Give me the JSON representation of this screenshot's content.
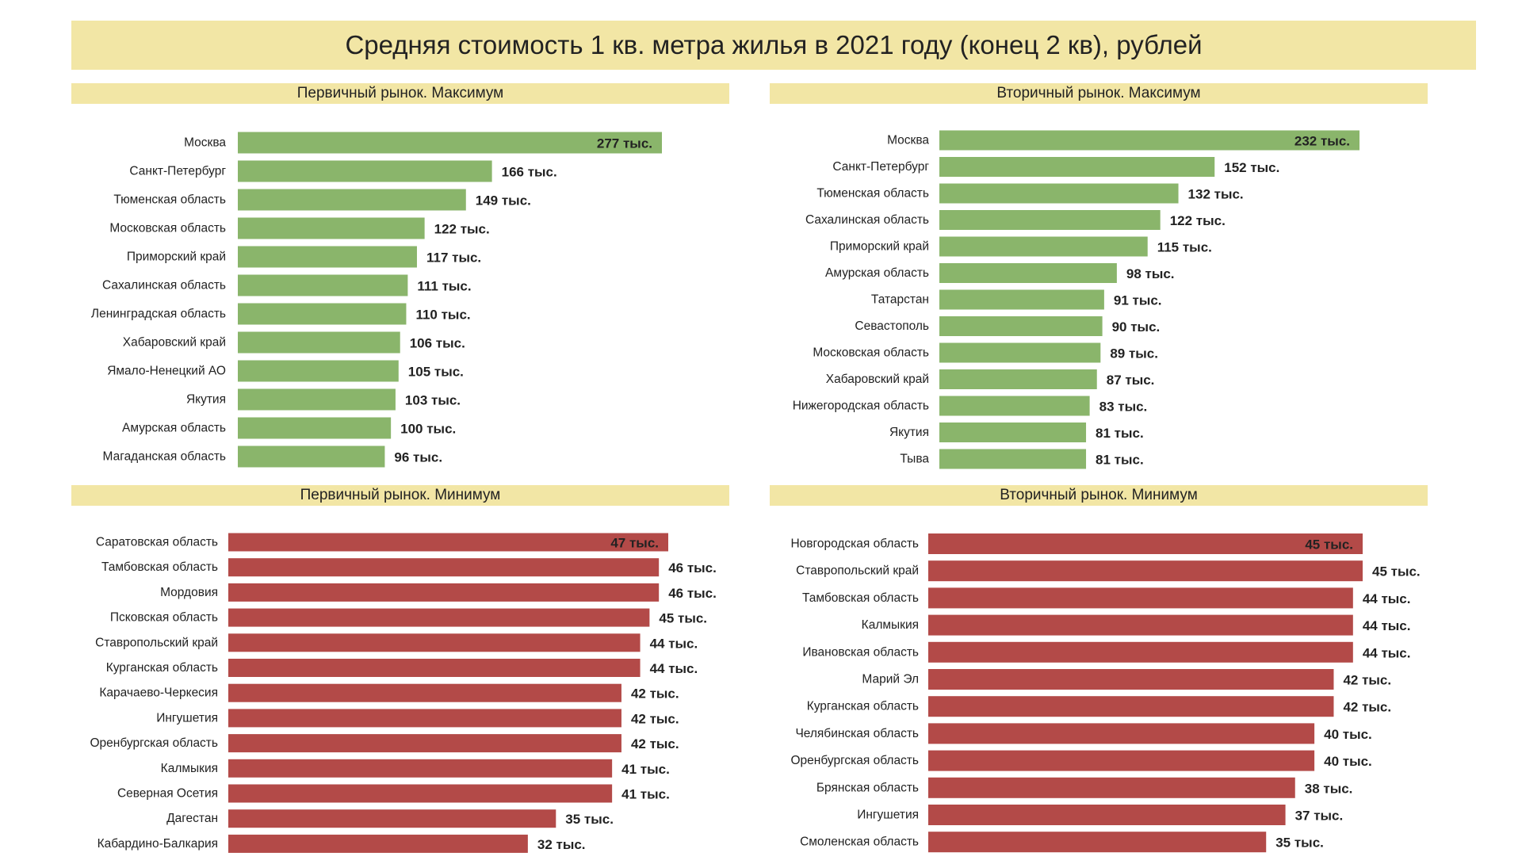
{
  "title": "Средняя стоимость 1 кв. метра жилья в 2021 году (конец 2 кв), рублей",
  "colors": {
    "header_bg": "#f2e6a5",
    "max_bar": "#8ab56b",
    "min_bar": "#b34a48"
  },
  "chart_data": [
    {
      "id": "primary-max",
      "type": "bar",
      "orientation": "horizontal",
      "title": "Первичный рынок. Максимум",
      "categories": [
        "Москва",
        "Санкт-Петербург",
        "Тюменская область",
        "Московская область",
        "Приморский край",
        "Сахалинская область",
        "Ленинградская область",
        "Хабаровский край",
        "Ямало-Ненецкий АО",
        "Якутия",
        "Амурская область",
        "Магаданская область"
      ],
      "values": [
        277,
        166,
        149,
        122,
        117,
        111,
        110,
        106,
        105,
        103,
        100,
        96
      ],
      "value_labels": [
        "277 тыс.",
        "166 тыс.",
        "149 тыс.",
        "122 тыс.",
        "117 тыс.",
        "111 тыс.",
        "110 тыс.",
        "106 тыс.",
        "105 тыс.",
        "103 тыс.",
        "100 тыс.",
        "96 тыс."
      ],
      "color": "#8ab56b",
      "unit": "тыс. руб."
    },
    {
      "id": "secondary-max",
      "type": "bar",
      "orientation": "horizontal",
      "title": "Вторичный рынок. Максимум",
      "categories": [
        "Москва",
        "Санкт-Петербург",
        "Тюменская область",
        "Сахалинская область",
        "Приморский край",
        "Амурская область",
        "Татарстан",
        "Севастополь",
        "Московская область",
        "Хабаровский край",
        "Нижегородская область",
        "Якутия",
        "Тыва"
      ],
      "values": [
        232,
        152,
        132,
        122,
        115,
        98,
        91,
        90,
        89,
        87,
        83,
        81,
        81
      ],
      "value_labels": [
        "232 тыс.",
        "152 тыс.",
        "132 тыс.",
        "122 тыс.",
        "115 тыс.",
        "98 тыс.",
        "91 тыс.",
        "90 тыс.",
        "89 тыс.",
        "87 тыс.",
        "83 тыс.",
        "81 тыс.",
        "81 тыс."
      ],
      "color": "#8ab56b",
      "unit": "тыс. руб."
    },
    {
      "id": "primary-min",
      "type": "bar",
      "orientation": "horizontal",
      "title": "Первичный рынок. Минимум",
      "categories": [
        "Саратовская область",
        "Тамбовская область",
        "Мордовия",
        "Псковская область",
        "Ставропольский край",
        "Курганская область",
        "Карачаево-Черкесия",
        "Ингушетия",
        "Оренбургская область",
        "Калмыкия",
        "Северная Осетия",
        "Дагестан",
        "Кабардино-Балкария"
      ],
      "values": [
        47,
        46,
        46,
        45,
        44,
        44,
        42,
        42,
        42,
        41,
        41,
        35,
        32
      ],
      "value_labels": [
        "47 тыс.",
        "46 тыс.",
        "46 тыс.",
        "45 тыс.",
        "44 тыс.",
        "44 тыс.",
        "42 тыс.",
        "42 тыс.",
        "42 тыс.",
        "41 тыс.",
        "41 тыс.",
        "35 тыс.",
        "32 тыс."
      ],
      "color": "#b34a48",
      "unit": "тыс. руб."
    },
    {
      "id": "secondary-min",
      "type": "bar",
      "orientation": "horizontal",
      "title": "Вторичный рынок. Минимум",
      "categories": [
        "Новгородская область",
        "Ставропольский край",
        "Тамбовская область",
        "Калмыкия",
        "Ивановская область",
        "Марий Эл",
        "Курганская область",
        "Челябинская область",
        "Оренбургская область",
        "Брянская область",
        "Ингушетия",
        "Смоленская область"
      ],
      "values": [
        45,
        45,
        44,
        44,
        44,
        42,
        42,
        40,
        40,
        38,
        37,
        35
      ],
      "value_labels": [
        "45 тыс.",
        "45 тыс.",
        "44 тыс.",
        "44 тыс.",
        "44 тыс.",
        "42 тыс.",
        "42 тыс.",
        "40 тыс.",
        "40 тыс.",
        "38 тыс.",
        "37 тыс.",
        "35 тыс."
      ],
      "color": "#b34a48",
      "unit": "тыс. руб."
    }
  ]
}
